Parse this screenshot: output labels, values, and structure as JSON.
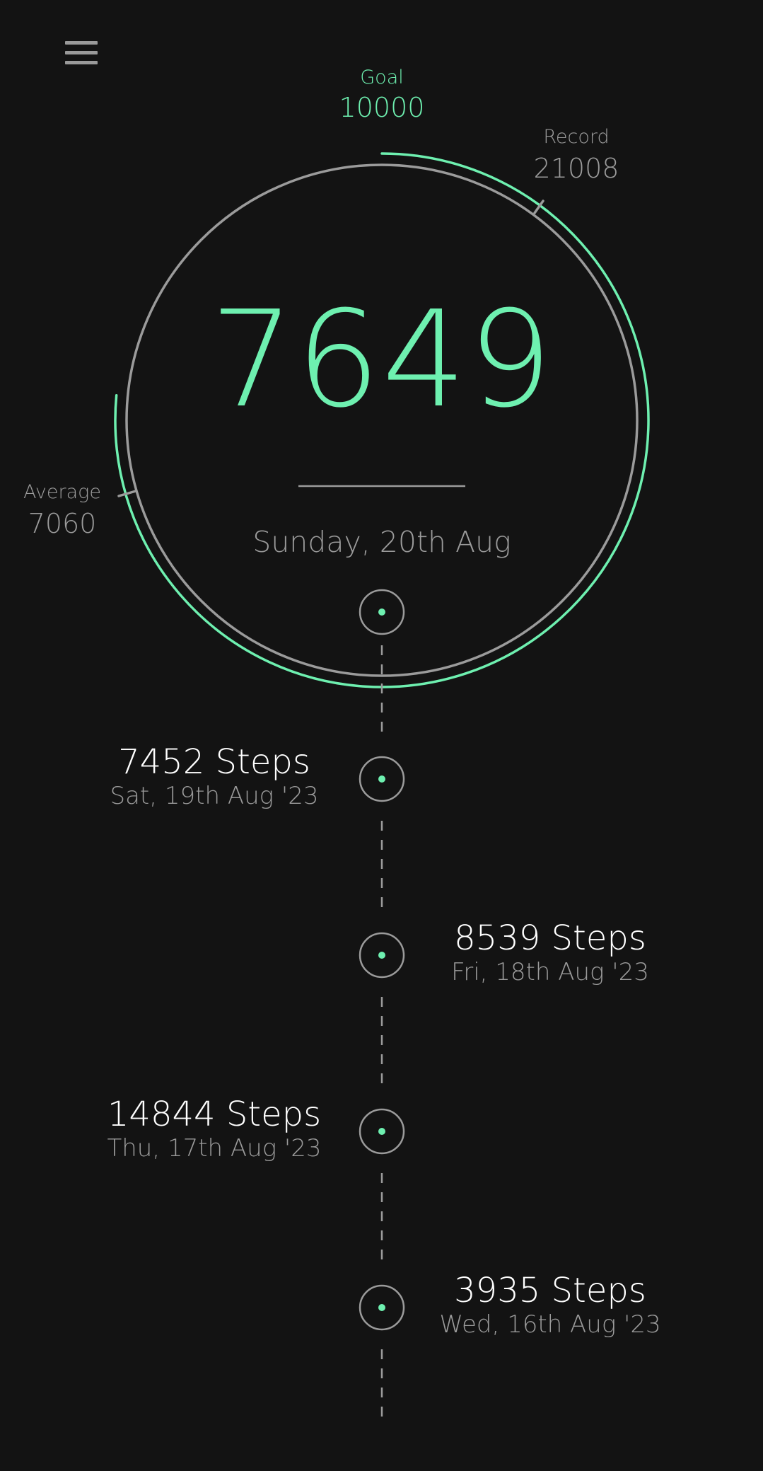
{
  "menu": {
    "icon": "hamburger-menu-icon"
  },
  "goal": {
    "label": "Goal",
    "value": "10000"
  },
  "record": {
    "label": "Record",
    "value": "21008"
  },
  "average": {
    "label": "Average",
    "value": "7060"
  },
  "today": {
    "steps": "7649",
    "date": "Sunday, 20th Aug",
    "goal_progress": 0.7649
  },
  "history": [
    {
      "steps": "7452 Steps",
      "date": "Sat, 19th Aug '23"
    },
    {
      "steps": "8539 Steps",
      "date": "Fri, 18th Aug '23"
    },
    {
      "steps": "14844 Steps",
      "date": "Thu, 17th Aug '23"
    },
    {
      "steps": "3935 Steps",
      "date": "Wed, 16th Aug '23"
    }
  ],
  "colors": {
    "accent": "#6ef0b0",
    "muted": "#9b9b9b",
    "background": "#131313",
    "text": "#ffffff"
  }
}
